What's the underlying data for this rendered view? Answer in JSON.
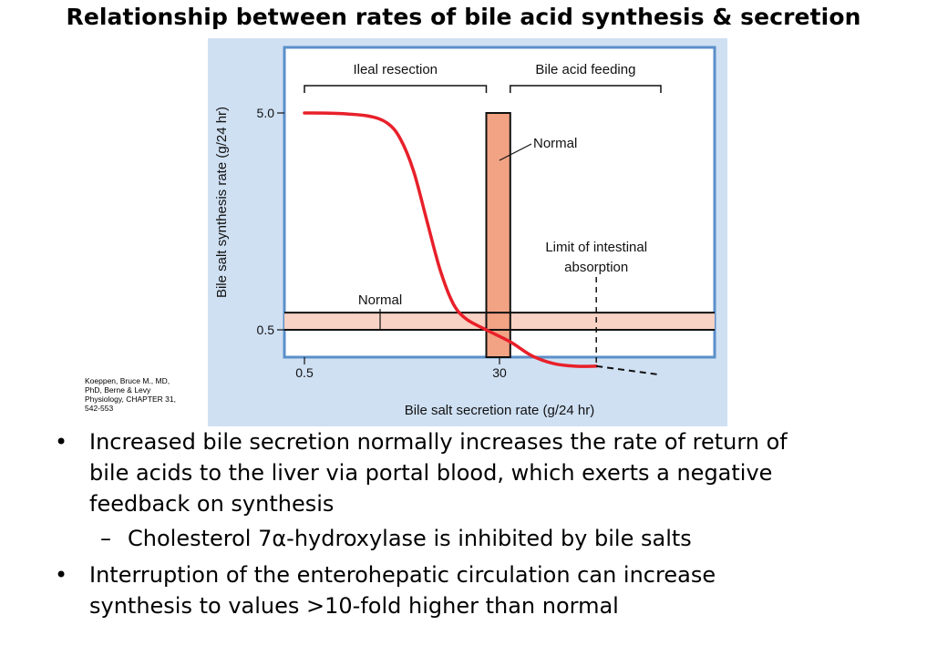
{
  "page": {
    "title": "Relationship between rates of bile acid synthesis & secretion",
    "citation": [
      "Koeppen, Bruce M., MD,",
      "PhD, Berne & Levy",
      "Physiology, CHAPTER 31,",
      "542-553"
    ]
  },
  "bullets": [
    {
      "bullet": "•",
      "lines": [
        "Increased bile secretion normally increases the rate of return of",
        "bile acids to the liver via portal blood, which exerts a negative",
        "feedback on synthesis"
      ],
      "sub": [
        {
          "dash": "–",
          "text": "Cholesterol 7α-hydroxylase is inhibited by bile salts"
        }
      ]
    },
    {
      "bullet": "•",
      "lines": [
        "Interruption of the enterohepatic circulation can increase",
        "synthesis to values >10-fold higher than normal"
      ],
      "sub": []
    }
  ],
  "chart_data": {
    "type": "line",
    "xlabel": "Bile salt secretion rate (g/24 hr)",
    "ylabel": "Bile salt synthesis rate (g/24 hr)",
    "x_ticks": [
      "0.5",
      "30"
    ],
    "y_ticks": [
      "5.0",
      "0.5"
    ],
    "xlim": [
      0.5,
      70
    ],
    "ylim": [
      0.3,
      6.0
    ],
    "series": [
      {
        "color": "#e8202a",
        "points": [
          [
            0.5,
            5.0
          ],
          [
            5,
            4.98
          ],
          [
            10,
            4.85
          ],
          [
            13,
            4.5
          ],
          [
            15,
            3.8
          ],
          [
            17,
            2.7
          ],
          [
            19,
            1.6
          ],
          [
            21,
            0.95
          ],
          [
            23,
            0.66
          ],
          [
            25,
            0.56
          ],
          [
            28,
            0.5
          ],
          [
            32,
            0.44
          ],
          [
            36,
            0.38
          ],
          [
            40,
            0.35
          ],
          [
            44,
            0.34
          ],
          [
            48,
            0.34
          ]
        ],
        "extension": {
          "style": "dashed",
          "points": [
            [
              48,
              0.34
            ],
            [
              60,
              0.31
            ]
          ]
        }
      }
    ],
    "regions": [
      {
        "label": "Ileal resection",
        "x": [
          0.5,
          28
        ]
      },
      {
        "label": "Bile acid feeding",
        "x": [
          32,
          60
        ]
      }
    ],
    "normal_bar": {
      "label": "Normal",
      "x": [
        28,
        32
      ],
      "y_top": 5.0,
      "color": "#f2a384"
    },
    "normal_band": {
      "label": "Normal",
      "y": [
        0.5,
        0.6
      ],
      "color": "#f8d2c4"
    },
    "annotations": [
      {
        "text": [
          "Limit of intestinal",
          "absorption"
        ],
        "x": 48
      }
    ],
    "grid": false,
    "legend": "none"
  }
}
